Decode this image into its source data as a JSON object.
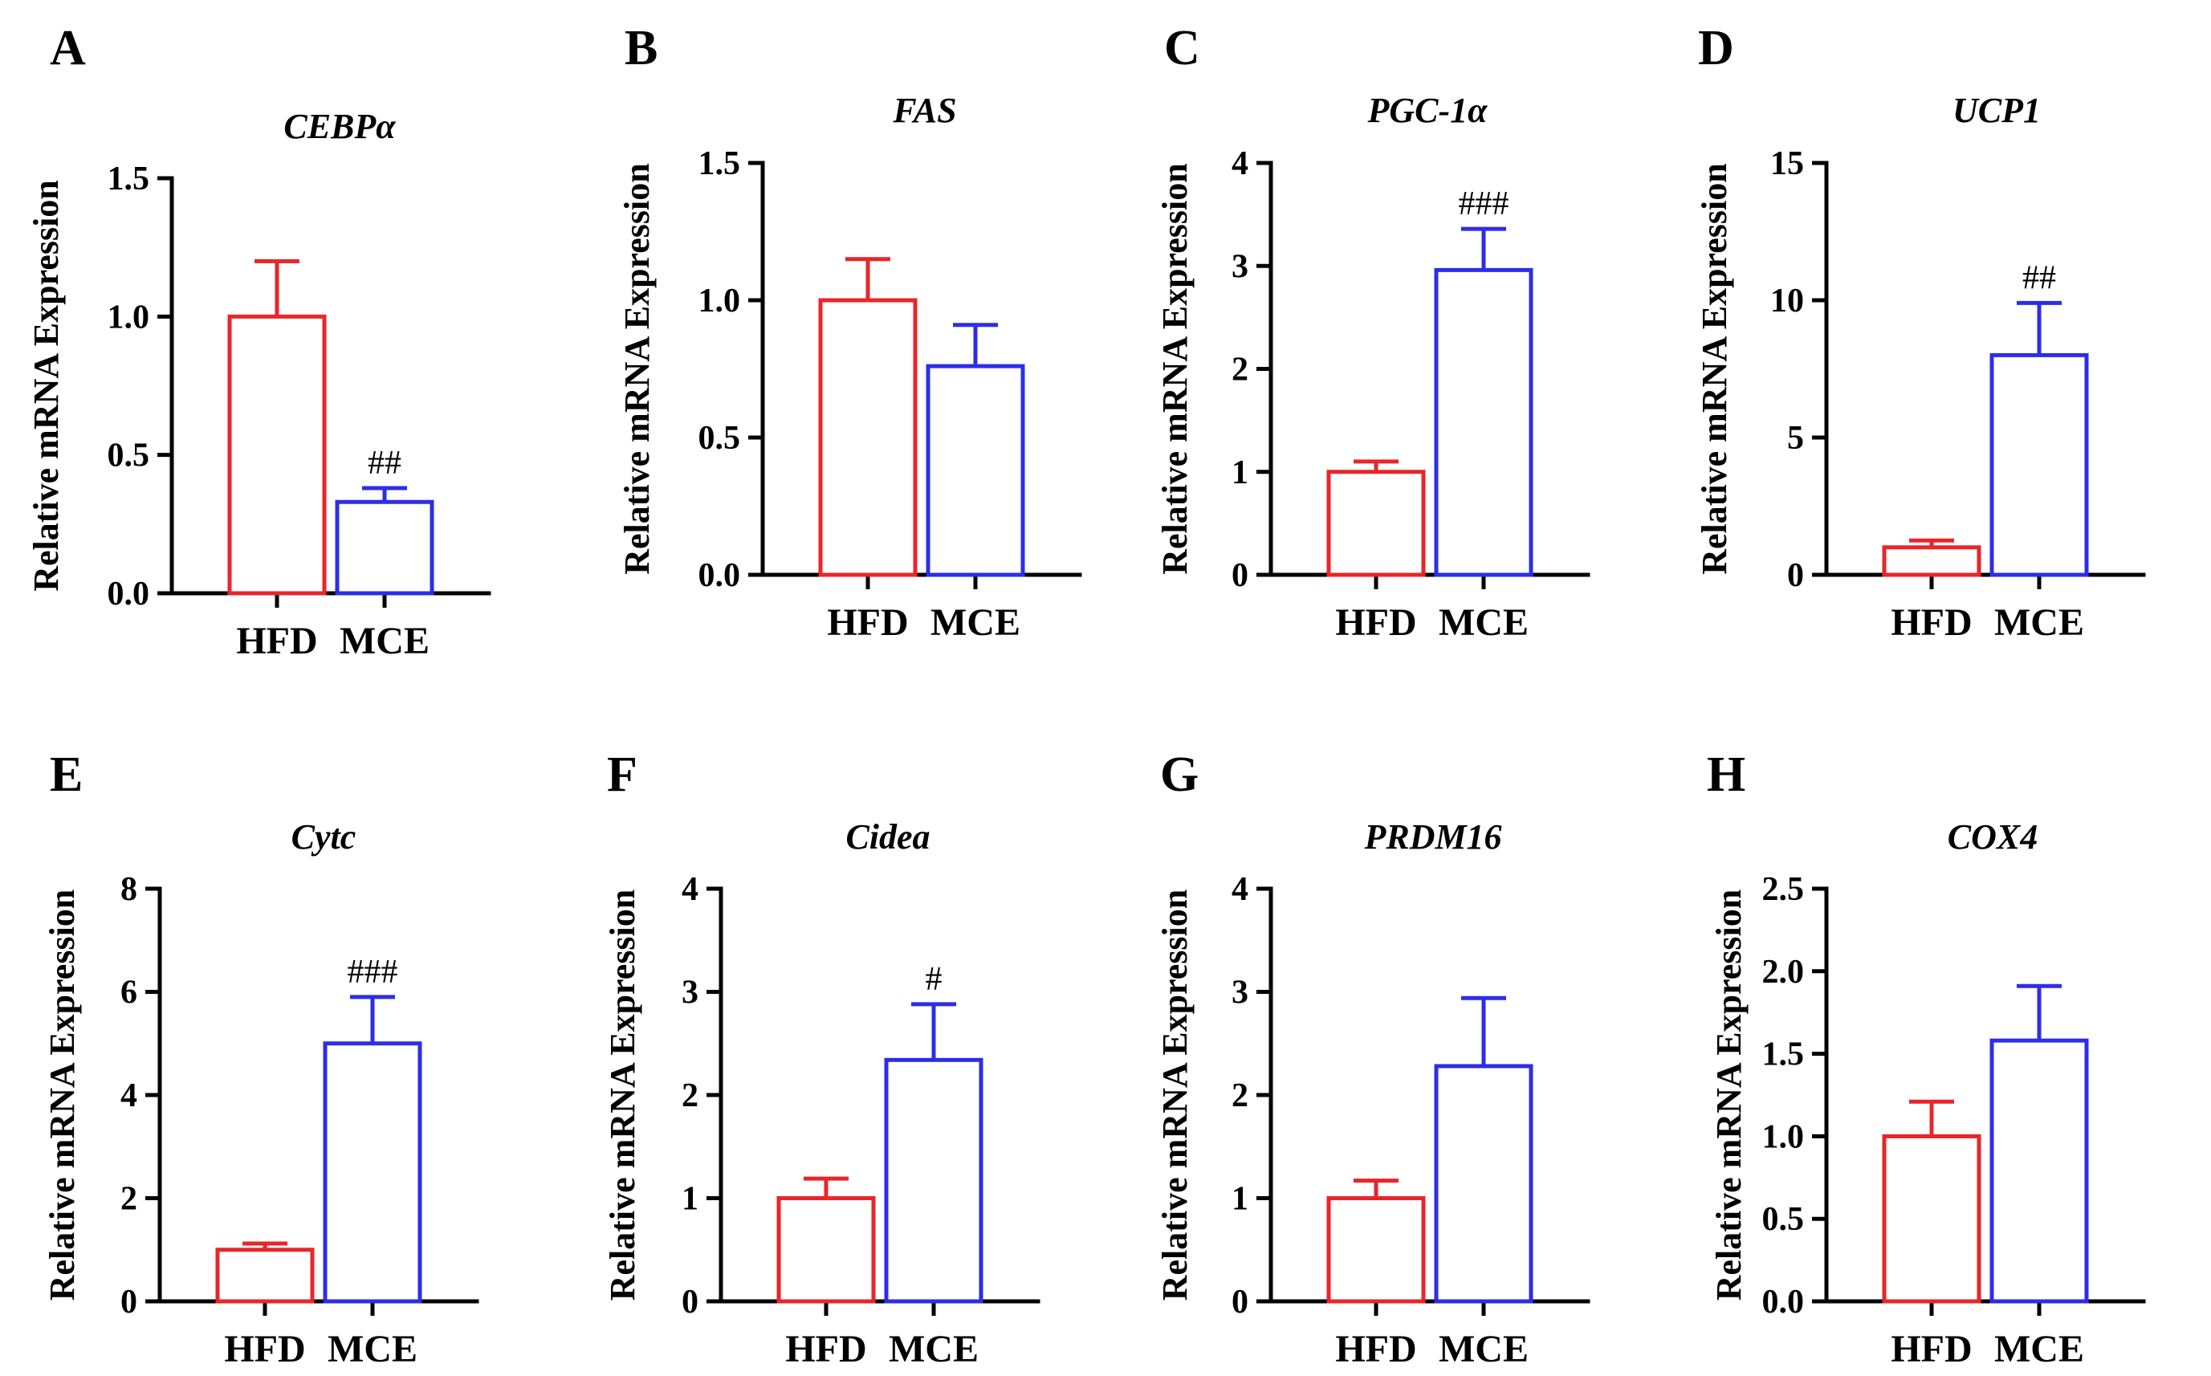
{
  "figure": {
    "colors": {
      "HFD": "#e8262a",
      "MCE": "#2d2de8",
      "axis": "#000000"
    }
  },
  "chart_data": [
    {
      "type": "bar",
      "panel": "A",
      "title": "CEBPα",
      "ylabel": "Relative mRNA Expression",
      "categories": [
        "HFD",
        "MCE"
      ],
      "values": [
        1.0,
        0.33
      ],
      "errors": [
        0.2,
        0.05
      ],
      "significance": [
        "",
        "##"
      ],
      "ylim": [
        0,
        1.5
      ],
      "yticks": [
        0,
        0.5,
        1.0,
        1.5
      ],
      "ytick_labels": [
        "0.0",
        "0.5",
        "1.0",
        "1.5"
      ]
    },
    {
      "type": "bar",
      "panel": "B",
      "title": "FAS",
      "ylabel": "Relative mRNA Expression",
      "categories": [
        "HFD",
        "MCE"
      ],
      "values": [
        1.0,
        0.76
      ],
      "errors": [
        0.15,
        0.15
      ],
      "significance": [
        "",
        ""
      ],
      "ylim": [
        0,
        1.5
      ],
      "yticks": [
        0,
        0.5,
        1.0,
        1.5
      ],
      "ytick_labels": [
        "0.0",
        "0.5",
        "1.0",
        "1.5"
      ]
    },
    {
      "type": "bar",
      "panel": "C",
      "title": "PGC-1α",
      "ylabel": "Relative mRNA Expression",
      "categories": [
        "HFD",
        "MCE"
      ],
      "values": [
        1.0,
        2.96
      ],
      "errors": [
        0.1,
        0.4
      ],
      "significance": [
        "",
        "###"
      ],
      "ylim": [
        0,
        4
      ],
      "yticks": [
        0,
        1,
        2,
        3,
        4
      ],
      "ytick_labels": [
        "0",
        "1",
        "2",
        "3",
        "4"
      ]
    },
    {
      "type": "bar",
      "panel": "D",
      "title": "UCP1",
      "ylabel": "Relative mRNA Expression",
      "categories": [
        "HFD",
        "MCE"
      ],
      "values": [
        1.0,
        8.0
      ],
      "errors": [
        0.25,
        1.9
      ],
      "significance": [
        "",
        "##"
      ],
      "ylim": [
        0,
        15
      ],
      "yticks": [
        0,
        5,
        10,
        15
      ],
      "ytick_labels": [
        "0",
        "5",
        "10",
        "15"
      ]
    },
    {
      "type": "bar",
      "panel": "E",
      "title": "Cytc",
      "ylabel": "Relative mRNA Expression",
      "categories": [
        "HFD",
        "MCE"
      ],
      "values": [
        1.0,
        5.0
      ],
      "errors": [
        0.12,
        0.9
      ],
      "significance": [
        "",
        "###"
      ],
      "ylim": [
        0,
        8
      ],
      "yticks": [
        0,
        2,
        4,
        6,
        8
      ],
      "ytick_labels": [
        "0",
        "2",
        "4",
        "6",
        "8"
      ]
    },
    {
      "type": "bar",
      "panel": "F",
      "title": "Cidea",
      "ylabel": "Relative mRNA Expression",
      "categories": [
        "HFD",
        "MCE"
      ],
      "values": [
        1.0,
        2.34
      ],
      "errors": [
        0.19,
        0.54
      ],
      "significance": [
        "",
        "#"
      ],
      "ylim": [
        0,
        4
      ],
      "yticks": [
        0,
        1,
        2,
        3,
        4
      ],
      "ytick_labels": [
        "0",
        "1",
        "2",
        "3",
        "4"
      ]
    },
    {
      "type": "bar",
      "panel": "G",
      "title": "PRDM16",
      "ylabel": "Relative mRNA Expression",
      "categories": [
        "HFD",
        "MCE"
      ],
      "values": [
        1.0,
        2.28
      ],
      "errors": [
        0.17,
        0.66
      ],
      "significance": [
        "",
        ""
      ],
      "ylim": [
        0,
        4
      ],
      "yticks": [
        0,
        1,
        2,
        3,
        4
      ],
      "ytick_labels": [
        "0",
        "1",
        "2",
        "3",
        "4"
      ]
    },
    {
      "type": "bar",
      "panel": "H",
      "title": "COX4",
      "ylabel": "Relative mRNA Expression",
      "categories": [
        "HFD",
        "MCE"
      ],
      "values": [
        1.0,
        1.58
      ],
      "errors": [
        0.21,
        0.33
      ],
      "significance": [
        "",
        ""
      ],
      "ylim": [
        0,
        2.5
      ],
      "yticks": [
        0,
        0.5,
        1.0,
        1.5,
        2.0,
        2.5
      ],
      "ytick_labels": [
        "0.0",
        "0.5",
        "1.0",
        "1.5",
        "2.0",
        "2.5"
      ]
    }
  ]
}
